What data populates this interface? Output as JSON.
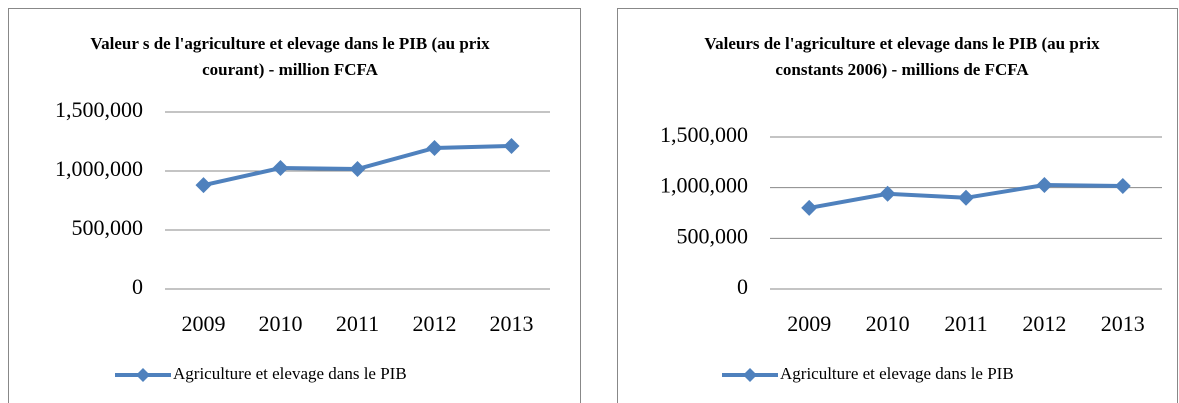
{
  "chart_data": [
    {
      "type": "line",
      "title": "Valeur s de l'agriculture et elevage dans le PIB (au prix courant) - million FCFA",
      "categories": [
        "2009",
        "2010",
        "2011",
        "2012",
        "2013"
      ],
      "series": [
        {
          "name": "Agriculture et elevage dans le PIB",
          "color": "#4f81bd",
          "values": [
            880000,
            1025000,
            1017000,
            1195000,
            1212000
          ]
        }
      ],
      "ylim": [
        0,
        1500000
      ],
      "yticks": [
        {
          "value": 0,
          "label": "0"
        },
        {
          "value": 500000,
          "label": "500,000"
        },
        {
          "value": 1000000,
          "label": "1,000,000"
        },
        {
          "value": 1500000,
          "label": "1,500,000"
        }
      ],
      "grid": true,
      "legend": "bottom"
    },
    {
      "type": "line",
      "title": "Valeurs de l'agriculture et elevage dans le PIB (au prix constants 2006) - millions de FCFA",
      "categories": [
        "2009",
        "2010",
        "2011",
        "2012",
        "2013"
      ],
      "series": [
        {
          "name": "Agriculture et elevage dans le PIB",
          "color": "#4f81bd",
          "values": [
            800000,
            940000,
            900000,
            1026000,
            1016000
          ]
        }
      ],
      "ylim": [
        0,
        1500000
      ],
      "yticks": [
        {
          "value": 0,
          "label": "0"
        },
        {
          "value": 500000,
          "label": "500,000"
        },
        {
          "value": 1000000,
          "label": "1,000,000"
        },
        {
          "value": 1500000,
          "label": "1,500,000"
        }
      ],
      "grid": true,
      "legend": "bottom"
    }
  ]
}
